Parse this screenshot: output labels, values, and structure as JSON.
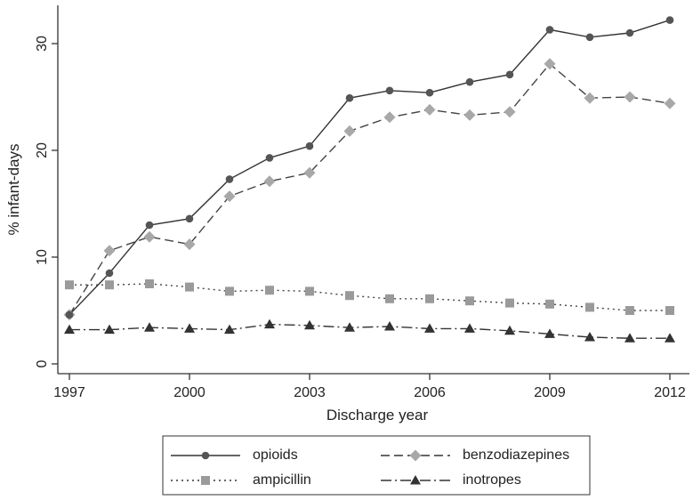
{
  "chart_data": {
    "type": "line",
    "title": "",
    "xlabel": "Discharge year",
    "ylabel": "% infant-days",
    "xlim": [
      1997,
      2012
    ],
    "ylim": [
      0,
      33
    ],
    "x": [
      1997,
      1998,
      1999,
      2000,
      2001,
      2002,
      2003,
      2004,
      2005,
      2006,
      2007,
      2008,
      2009,
      2010,
      2011,
      2012
    ],
    "x_ticks": [
      1997,
      2000,
      2003,
      2006,
      2009,
      2012
    ],
    "y_ticks": [
      0,
      10,
      20,
      30
    ],
    "grid": false,
    "legend_position": "bottom",
    "series": [
      {
        "name": "opioids",
        "color": "#555555",
        "marker": "circle",
        "line_style": "solid",
        "values": [
          4.6,
          8.5,
          13.0,
          13.6,
          17.3,
          19.3,
          20.4,
          24.9,
          25.6,
          25.4,
          26.4,
          27.1,
          31.3,
          30.6,
          31.0,
          32.2
        ]
      },
      {
        "name": "benzodiazepines",
        "color": "#a8a8a8",
        "marker": "diamond",
        "line_style": "dashed",
        "values": [
          4.6,
          10.6,
          11.9,
          11.2,
          15.7,
          17.1,
          17.9,
          21.8,
          23.1,
          23.8,
          23.3,
          23.6,
          28.1,
          24.9,
          25.0,
          24.4
        ]
      },
      {
        "name": "ampicillin",
        "color": "#9a9a9a",
        "marker": "square",
        "line_style": "dotted",
        "values": [
          7.4,
          7.4,
          7.5,
          7.2,
          6.8,
          6.9,
          6.8,
          6.4,
          6.1,
          6.1,
          5.9,
          5.7,
          5.6,
          5.3,
          5.0,
          5.0
        ]
      },
      {
        "name": "inotropes",
        "color": "#333333",
        "marker": "triangle",
        "line_style": "dashdot",
        "values": [
          3.2,
          3.2,
          3.4,
          3.3,
          3.2,
          3.7,
          3.6,
          3.4,
          3.5,
          3.3,
          3.3,
          3.1,
          2.8,
          2.5,
          2.4,
          2.4
        ]
      }
    ]
  }
}
